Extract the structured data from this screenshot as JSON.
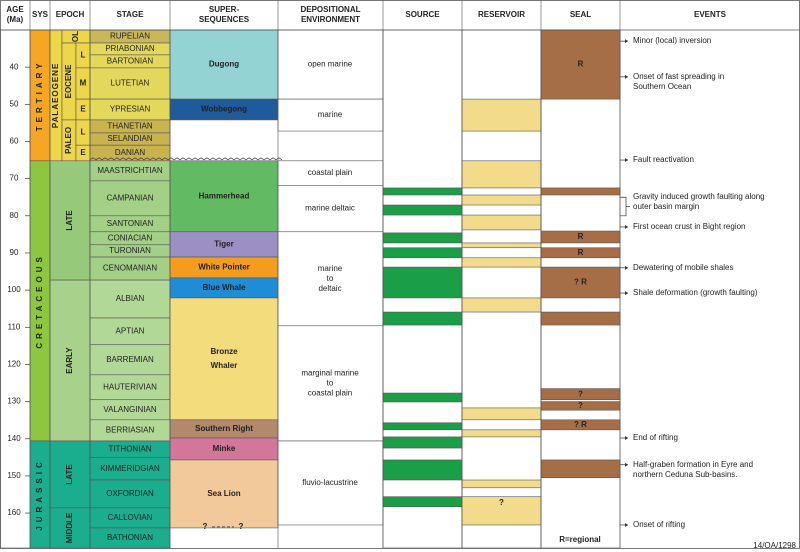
{
  "header": {
    "columns": [
      [
        "AGE",
        "(Ma)"
      ],
      [
        "SYS"
      ],
      [
        "EPOCH"
      ],
      [
        "STAGE"
      ],
      [
        "SUPER-",
        "SEQUENCES"
      ],
      [
        "DEPOSITIONAL",
        "ENVIRONMENT"
      ],
      [
        "SOURCE"
      ],
      [
        "RESERVOIR"
      ],
      [
        "SEAL"
      ],
      [
        "EVENTS"
      ]
    ]
  },
  "age_axis": {
    "lim": [
      30,
      169.4
    ],
    "ticks": [
      40,
      50,
      60,
      70,
      80,
      90,
      100,
      110,
      120,
      130,
      140,
      150,
      160
    ]
  },
  "systems": [
    {
      "name": "TERTIARY",
      "top": 30,
      "base": 65.2,
      "color": "#f5a623"
    },
    {
      "name": "CRETACEOUS",
      "top": 65.2,
      "base": 140.6,
      "color": "#8dc63f"
    },
    {
      "name": "JURASSIC",
      "top": 140.6,
      "base": 169.4,
      "color": "#1aae8f"
    }
  ],
  "tertiary_epochs": {
    "series": {
      "name": "PALAEOGENE",
      "top": 30,
      "base": 65.2,
      "color": "#eed64a"
    },
    "epochs": [
      {
        "name": "OL",
        "top": 30,
        "base": 33.5,
        "color": "#eed64a"
      },
      {
        "name": "EOCENE",
        "top": 33.5,
        "base": 54.2,
        "color": "#eed64a"
      },
      {
        "name": "PALEO",
        "top": 54.2,
        "base": 65.2,
        "color": "#eed64a"
      }
    ],
    "subepochs": [
      {
        "name": "L",
        "top": 33.5,
        "base": 40.2,
        "color": "#eed64a"
      },
      {
        "name": "M",
        "top": 40.2,
        "base": 48.6,
        "color": "#eed64a"
      },
      {
        "name": "E",
        "top": 48.6,
        "base": 54.2,
        "color": "#eed64a"
      },
      {
        "name": "L",
        "top": 54.2,
        "base": 61,
        "color": "#eed64a"
      },
      {
        "name": "E",
        "top": 61,
        "base": 65.2,
        "color": "#eed64a"
      }
    ]
  },
  "epochs": [
    {
      "name": "LATE",
      "top": 65.2,
      "base": 97.3,
      "color": "#97c97a"
    },
    {
      "name": "EARLY",
      "top": 97.3,
      "base": 140.6,
      "color": "#a8d28c"
    },
    {
      "name": "LATE",
      "top": 140.6,
      "base": 158.6,
      "color": "#1aae8f"
    },
    {
      "name": "MIDDLE",
      "top": 158.6,
      "base": 169.4,
      "color": "#1aae8f"
    }
  ],
  "stages": [
    {
      "name": "RUPELIAN",
      "top": 30,
      "base": 33.5,
      "color": "#c9b75a"
    },
    {
      "name": "PRIABONIAN",
      "top": 33.5,
      "base": 36.7,
      "color": "#e3d85c"
    },
    {
      "name": "BARTONIAN",
      "top": 36.7,
      "base": 40.2,
      "color": "#e3d85c"
    },
    {
      "name": "LUTETIAN",
      "top": 40.2,
      "base": 48.6,
      "color": "#e3d85c"
    },
    {
      "name": "YPRESIAN",
      "top": 48.6,
      "base": 54.2,
      "color": "#e3d85c"
    },
    {
      "name": "THANETIAN",
      "top": 54.2,
      "base": 57.7,
      "color": "#c9b34e"
    },
    {
      "name": "SELANDIAN",
      "top": 57.7,
      "base": 61,
      "color": "#c9b34e"
    },
    {
      "name": "DANIAN",
      "top": 61,
      "base": 65.2,
      "color": "#c9b34e"
    },
    {
      "name": "MAASTRICHTIAN",
      "top": 65.2,
      "base": 70.6,
      "color": "#a3cf86"
    },
    {
      "name": "CAMPANIAN",
      "top": 70.6,
      "base": 80,
      "color": "#a3cf86"
    },
    {
      "name": "SANTONIAN",
      "top": 80,
      "base": 84.3,
      "color": "#a3cf86"
    },
    {
      "name": "CONIACIAN",
      "top": 84.3,
      "base": 87.8,
      "color": "#a3cf86"
    },
    {
      "name": "TURONIAN",
      "top": 87.8,
      "base": 91.1,
      "color": "#a3cf86"
    },
    {
      "name": "CENOMANIAN",
      "top": 91.1,
      "base": 97.3,
      "color": "#a3cf86"
    },
    {
      "name": "ALBIAN",
      "top": 97.3,
      "base": 107.5,
      "color": "#b2d897"
    },
    {
      "name": "APTIAN",
      "top": 107.5,
      "base": 114.7,
      "color": "#b2d897"
    },
    {
      "name": "BARREMIAN",
      "top": 114.7,
      "base": 122.8,
      "color": "#b2d897"
    },
    {
      "name": "HAUTERIVIAN",
      "top": 122.8,
      "base": 129.5,
      "color": "#b2d897"
    },
    {
      "name": "VALANGINIAN",
      "top": 129.5,
      "base": 134.9,
      "color": "#b2d897"
    },
    {
      "name": "BERRIASIAN",
      "top": 134.9,
      "base": 140.6,
      "color": "#b2d897"
    },
    {
      "name": "TITHONIAN",
      "top": 140.6,
      "base": 145.1,
      "color": "#1aae8f"
    },
    {
      "name": "KIMMERIDGIAN",
      "top": 145.1,
      "base": 151.1,
      "color": "#1aae8f"
    },
    {
      "name": "OXFORDIAN",
      "top": 151.1,
      "base": 158.6,
      "color": "#1aae8f"
    },
    {
      "name": "CALLOVIAN",
      "top": 158.6,
      "base": 164,
      "color": "#1aae8f"
    },
    {
      "name": "BATHONIAN",
      "top": 164,
      "base": 169.4,
      "color": "#1aae8f"
    }
  ],
  "supersequences": [
    {
      "name": "Dugong",
      "top": 30,
      "base": 48.6,
      "color": "#93d3d3"
    },
    {
      "name": "Wobbegong",
      "top": 48.6,
      "base": 54.2,
      "color": "#1f5a9a"
    },
    {
      "name": "Hammerhead",
      "top": 65.2,
      "base": 84.3,
      "color": "#62bb63"
    },
    {
      "name": "Tiger",
      "top": 84.3,
      "base": 91.1,
      "color": "#9b8fc4"
    },
    {
      "name": "White Pointer",
      "top": 91.1,
      "base": 96.7,
      "color": "#f39c1e"
    },
    {
      "name": "Blue Whale",
      "top": 96.7,
      "base": 102.1,
      "color": "#1f8dd6"
    },
    {
      "name": "Bronze Whaler",
      "top": 102.1,
      "base": 134.9,
      "color": "#f2dc7c"
    },
    {
      "name": "Southern Right",
      "top": 134.9,
      "base": 139.8,
      "color": "#b3896b"
    },
    {
      "name": "Minke",
      "top": 139.8,
      "base": 145.7,
      "color": "#d2779a"
    },
    {
      "name": "Sea Lion",
      "top": 145.7,
      "base": 164,
      "color": "#f2c99a"
    }
  ],
  "supersequence_queries": [
    "?",
    "?"
  ],
  "environments": [
    {
      "lines": [
        "open marine"
      ],
      "top": 30,
      "base": 48.6
    },
    {
      "lines": [
        "marine"
      ],
      "top": 48.6,
      "base": 57.2
    },
    {
      "lines": [
        "coastal plain"
      ],
      "top": 65.2,
      "base": 71.8
    },
    {
      "lines": [
        "marine deltaic"
      ],
      "top": 71.8,
      "base": 84.3
    },
    {
      "lines": [
        "marine",
        "to",
        "deltaic"
      ],
      "top": 84.3,
      "base": 109.6
    },
    {
      "lines": [
        "marginal marine",
        "to",
        "coastal plain"
      ],
      "top": 109.6,
      "base": 140.6
    },
    {
      "lines": [
        "fluvio-lacustrine"
      ],
      "top": 140.6,
      "base": 163.2
    }
  ],
  "source": {
    "color": "#1a9e48",
    "intervals": [
      {
        "top": 72.5,
        "base": 74.4
      },
      {
        "top": 77.1,
        "base": 79.8
      },
      {
        "top": 84.6,
        "base": 87.3
      },
      {
        "top": 88.6,
        "base": 91.3
      },
      {
        "top": 93.8,
        "base": 102.1
      },
      {
        "top": 105.9,
        "base": 109.4
      },
      {
        "top": 127.7,
        "base": 130.1
      },
      {
        "top": 135.7,
        "base": 137.6
      },
      {
        "top": 139.5,
        "base": 142.5
      },
      {
        "top": 145.7,
        "base": 151.1
      },
      {
        "top": 155.6,
        "base": 158.3
      }
    ]
  },
  "reservoir": {
    "color": "#f2dc8c",
    "intervals": [
      {
        "top": 48.6,
        "base": 57.2
      },
      {
        "top": 65.2,
        "base": 72.5
      },
      {
        "top": 74.4,
        "base": 77.1
      },
      {
        "top": 79.8,
        "base": 83.8
      },
      {
        "top": 87.3,
        "base": 88.6
      },
      {
        "top": 91.3,
        "base": 93.8
      },
      {
        "top": 102.1,
        "base": 105.9
      },
      {
        "top": 131.7,
        "base": 134.9
      },
      {
        "top": 137.6,
        "base": 139.5
      },
      {
        "top": 151.1,
        "base": 153.2
      },
      {
        "top": 155.6,
        "base": 163.2,
        "label": "?"
      }
    ]
  },
  "seal": {
    "color": "#a66e47",
    "intervals": [
      {
        "top": 30,
        "base": 48.6,
        "label": "R"
      },
      {
        "top": 72.5,
        "base": 74.4
      },
      {
        "top": 84.1,
        "base": 87.3,
        "label": "R"
      },
      {
        "top": 88.6,
        "base": 91.3,
        "label": "R"
      },
      {
        "top": 93.8,
        "base": 102.1,
        "label": "? R"
      },
      {
        "top": 105.9,
        "base": 109.4
      },
      {
        "top": 126.5,
        "base": 129.5,
        "label": "?"
      },
      {
        "top": 130,
        "base": 132.3,
        "label": "?"
      },
      {
        "top": 134.9,
        "base": 137.6,
        "label": "? R"
      },
      {
        "top": 145.7,
        "base": 150.5
      }
    ]
  },
  "events": [
    {
      "lines": [
        "Minor (local) inversion"
      ],
      "age": 33
    },
    {
      "lines": [
        "Onset of fast spreading in",
        "Southern Ocean"
      ],
      "age": 42.6
    },
    {
      "lines": [
        "Fault reactivation"
      ],
      "age": 65
    },
    {
      "lines": [
        "Gravity induced growth faulting along",
        "outer basin margin"
      ],
      "age": 75,
      "base": 80
    },
    {
      "lines": [
        "First ocean crust in Bight region"
      ],
      "age": 83
    },
    {
      "lines": [
        "Dewatering of mobile shales"
      ],
      "age": 94
    },
    {
      "lines": [
        "Shale deformation (growth faulting)"
      ],
      "age": 100.8
    },
    {
      "lines": [
        "End of rifting"
      ],
      "age": 139.8
    },
    {
      "lines": [
        "Half-graben formation in Eyre and",
        "northern Ceduna Sub-basins."
      ],
      "age": 147
    },
    {
      "lines": [
        "Onset of rifting"
      ],
      "age": 163.2
    }
  ],
  "footer": {
    "legend": "R=regional",
    "code": "14/OA/1298"
  }
}
